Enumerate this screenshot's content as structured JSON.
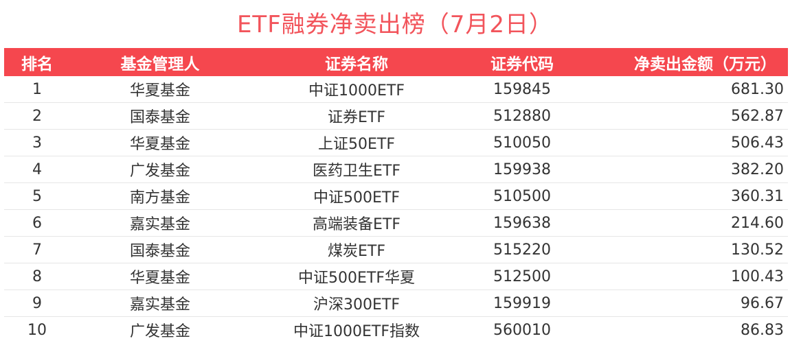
{
  "title": "ETF融券净卖出榜（7月2日）",
  "colors": {
    "header_bg": "#f5474e",
    "title_text": "#f2545b"
  },
  "table": {
    "headers": {
      "rank": "排名",
      "manager": "基金管理人",
      "name": "证券名称",
      "code": "证券代码",
      "amount": "净卖出金额（万元）"
    },
    "rows": [
      {
        "rank": "1",
        "manager": "华夏基金",
        "name": "中证1000ETF",
        "code": "159845",
        "amount": "681.30"
      },
      {
        "rank": "2",
        "manager": "国泰基金",
        "name": "证券ETF",
        "code": "512880",
        "amount": "562.87"
      },
      {
        "rank": "3",
        "manager": "华夏基金",
        "name": "上证50ETF",
        "code": "510050",
        "amount": "506.43"
      },
      {
        "rank": "4",
        "manager": "广发基金",
        "name": "医药卫生ETF",
        "code": "159938",
        "amount": "382.20"
      },
      {
        "rank": "5",
        "manager": "南方基金",
        "name": "中证500ETF",
        "code": "510500",
        "amount": "360.31"
      },
      {
        "rank": "6",
        "manager": "嘉实基金",
        "name": "高端装备ETF",
        "code": "159638",
        "amount": "214.60"
      },
      {
        "rank": "7",
        "manager": "国泰基金",
        "name": "煤炭ETF",
        "code": "515220",
        "amount": "130.52"
      },
      {
        "rank": "8",
        "manager": "华夏基金",
        "name": "中证500ETF华夏",
        "code": "512500",
        "amount": "100.43"
      },
      {
        "rank": "9",
        "manager": "嘉实基金",
        "name": "沪深300ETF",
        "code": "159919",
        "amount": "96.67"
      },
      {
        "rank": "10",
        "manager": "广发基金",
        "name": "中证1000ETF指数",
        "code": "560010",
        "amount": "86.83"
      }
    ]
  }
}
